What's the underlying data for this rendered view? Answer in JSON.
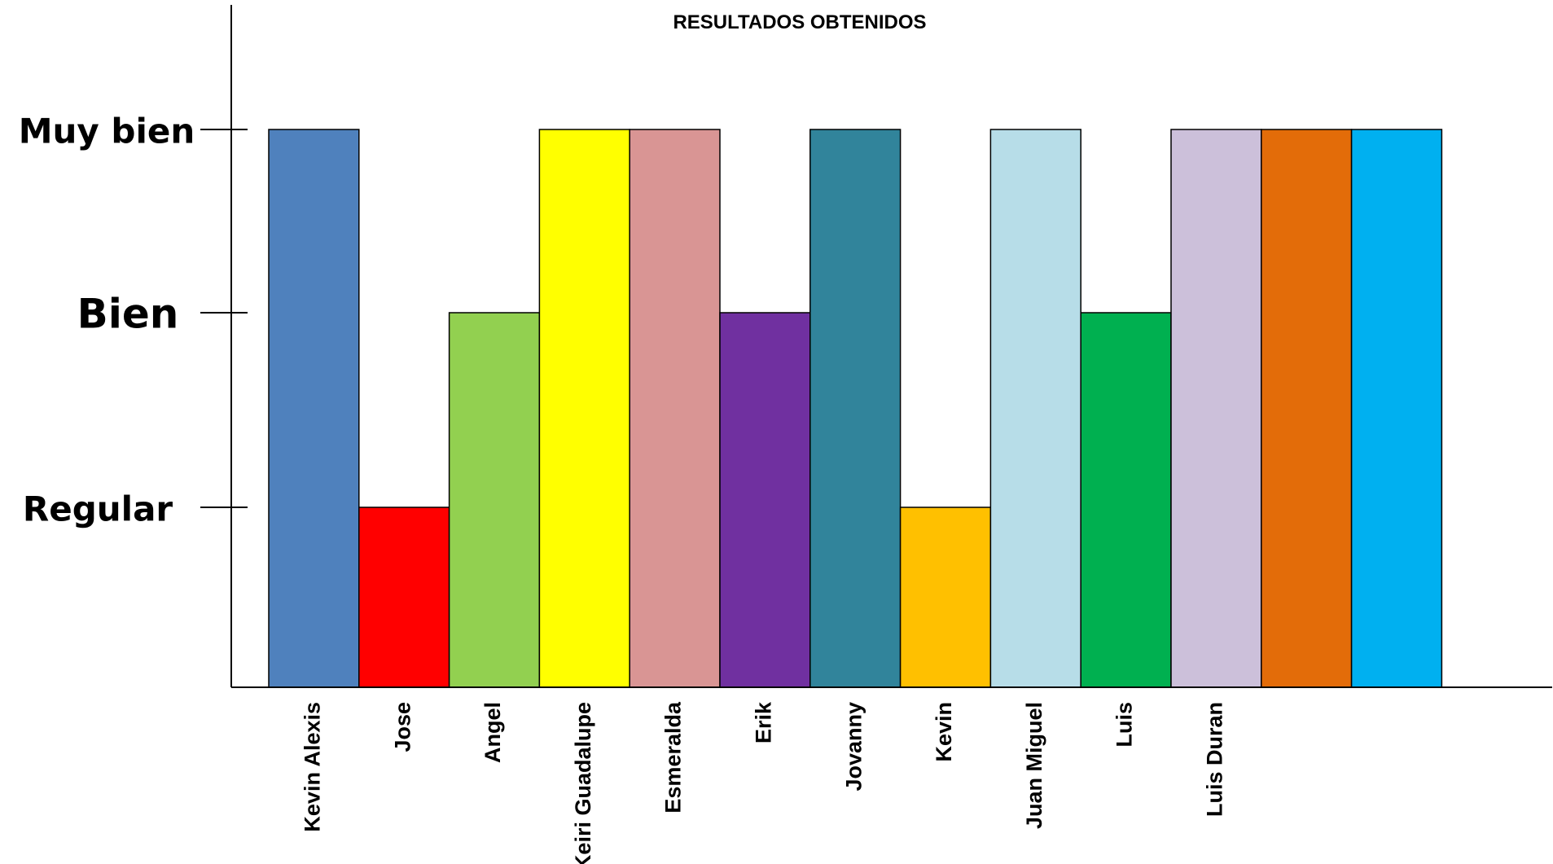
{
  "chart_data": {
    "type": "bar",
    "title": "RESULTADOS OBTENIDOS",
    "xlabel": "",
    "ylabel": "",
    "y_levels": [
      "Regular",
      "Bien",
      "Muy bien"
    ],
    "ylim": [
      0,
      3
    ],
    "grid": false,
    "legend": "none",
    "categories": [
      "Kevin Alexis",
      "Jose",
      "Angel",
      "Keiri Guadalupe",
      "Esmeralda",
      "Erik",
      "Jovanny",
      "Kevin",
      "Juan Miguel",
      "Luis",
      "Luis Duran",
      "",
      ""
    ],
    "values": [
      3,
      1,
      2,
      3,
      3,
      2,
      3,
      1,
      3,
      2,
      3,
      3,
      3
    ],
    "colors": [
      "#4f81bd",
      "#ff0000",
      "#92d050",
      "#ffff00",
      "#d99594",
      "#7030a0",
      "#31849b",
      "#ffc000",
      "#b7dde8",
      "#00b050",
      "#ccc0da",
      "#e36c09",
      "#00b0f0"
    ]
  }
}
